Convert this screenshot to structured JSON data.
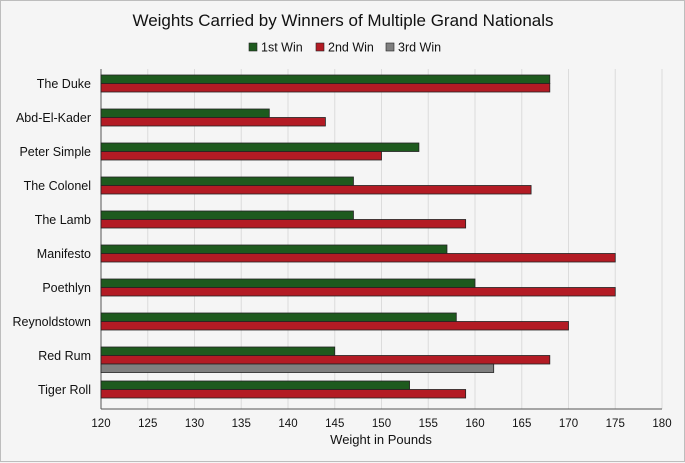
{
  "chart_data": {
    "type": "bar",
    "orientation": "horizontal",
    "title": "Weights Carried by Winners of Multiple Grand Nationals",
    "xlabel": "Weight in Pounds",
    "ylabel": "",
    "xlim": [
      120,
      180
    ],
    "xticks": [
      120,
      125,
      130,
      135,
      140,
      145,
      150,
      155,
      160,
      165,
      170,
      175,
      180
    ],
    "grid": "vertical",
    "legend_position": "top",
    "categories": [
      "The Duke",
      "Abd-El-Kader",
      "Peter Simple",
      "The Colonel",
      "The Lamb",
      "Manifesto",
      "Poethlyn",
      "Reynoldstown",
      "Red Rum",
      "Tiger Roll"
    ],
    "series": [
      {
        "name": "1st Win",
        "color": "#1e5a1e",
        "values": [
          168,
          138,
          154,
          147,
          147,
          157,
          160,
          158,
          145,
          153
        ]
      },
      {
        "name": "2nd Win",
        "color": "#b31b24",
        "values": [
          168,
          144,
          150,
          166,
          159,
          175,
          175,
          170,
          168,
          159
        ]
      },
      {
        "name": "3rd Win",
        "color": "#7f7f7f",
        "values": [
          null,
          null,
          null,
          null,
          null,
          null,
          null,
          null,
          162,
          null
        ]
      }
    ]
  }
}
